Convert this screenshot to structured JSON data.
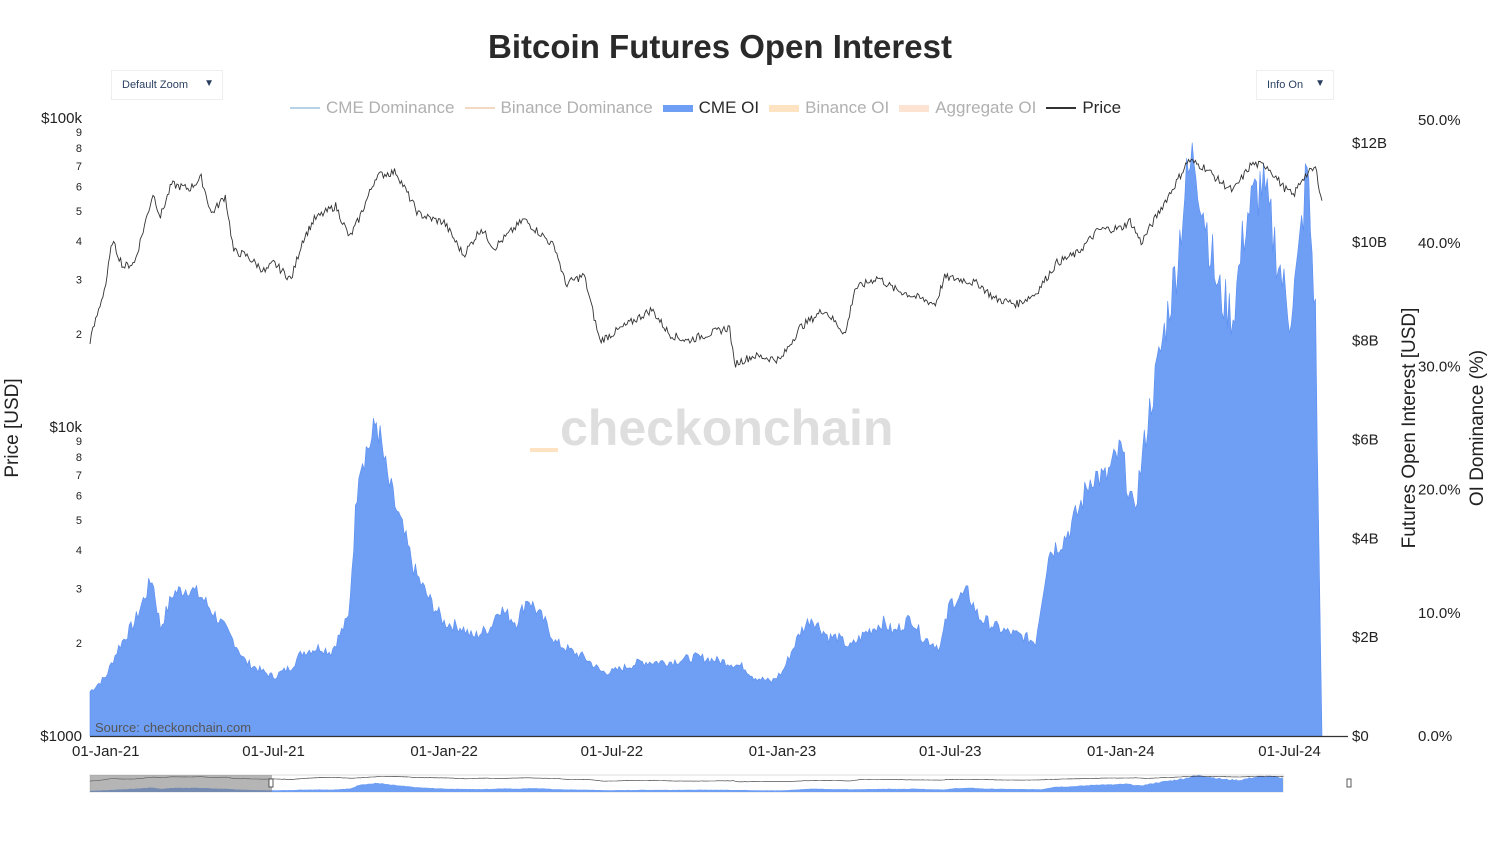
{
  "title": "Bitcoin Futures Open Interest",
  "controls": {
    "zoom_label": "Default Zoom",
    "info_label": "Info On",
    "dropdown_arrow": "▼"
  },
  "legend": [
    {
      "label": "CME Dominance",
      "color": "#b7d3ea",
      "active": false,
      "kind": "line"
    },
    {
      "label": "Binance Dominance",
      "color": "#f3d9c2",
      "active": false,
      "kind": "line"
    },
    {
      "label": "CME OI",
      "color": "#6f9ff5",
      "active": true,
      "kind": "area"
    },
    {
      "label": "Binance OI",
      "color": "#fde3c2",
      "active": false,
      "kind": "area"
    },
    {
      "label": "Aggregate OI",
      "color": "#fde3d2",
      "active": false,
      "kind": "area"
    },
    {
      "label": "Price",
      "color": "#333333",
      "active": true,
      "kind": "line"
    }
  ],
  "watermark": "checkonchain",
  "source": "Source: checkonchain.com",
  "chart_data": {
    "type": "area",
    "x_ticks": [
      "01-Jan-21",
      "01-Jul-21",
      "01-Jan-22",
      "01-Jul-22",
      "01-Jan-23",
      "01-Jul-23",
      "01-Jan-24",
      "01-Jul-24"
    ],
    "x_range": [
      "2020-12-15",
      "2024-09-01"
    ],
    "y_left": {
      "label": "Price [USD]",
      "scale": "log",
      "range": [
        1000,
        100000
      ],
      "tick_labels": [
        "$1000",
        "2",
        "3",
        "4",
        "5",
        "6",
        "7",
        "8",
        "9",
        "$10k",
        "2",
        "3",
        "4",
        "5",
        "6",
        "7",
        "8",
        "9",
        "$100k"
      ]
    },
    "y_right_oi": {
      "label": "Futures Open Interest [USD]",
      "range": [
        0,
        12000000000
      ],
      "tick_labels": [
        "$0",
        "$2B",
        "$4B",
        "$6B",
        "$8B",
        "$10B",
        "$12B"
      ]
    },
    "y_right_dominance": {
      "label": "OI Dominance (%)",
      "range": [
        0,
        50
      ],
      "tick_labels": [
        "0.0%",
        "10.0%",
        "20.0%",
        "30.0%",
        "40.0%",
        "50.0%"
      ]
    },
    "series": [
      {
        "name": "CME OI",
        "axis": "oi",
        "x": [
          "2020-12-15",
          "2021-01-01",
          "2021-01-15",
          "2021-02-01",
          "2021-02-20",
          "2021-03-01",
          "2021-03-15",
          "2021-04-01",
          "2021-04-15",
          "2021-05-01",
          "2021-05-20",
          "2021-06-01",
          "2021-06-20",
          "2021-07-01",
          "2021-07-20",
          "2021-08-01",
          "2021-08-20",
          "2021-09-01",
          "2021-09-20",
          "2021-10-01",
          "2021-10-15",
          "2021-10-20",
          "2021-11-01",
          "2021-11-15",
          "2021-12-01",
          "2021-12-15",
          "2022-01-01",
          "2022-01-20",
          "2022-02-01",
          "2022-02-20",
          "2022-03-01",
          "2022-03-20",
          "2022-04-01",
          "2022-04-20",
          "2022-05-01",
          "2022-05-20",
          "2022-06-01",
          "2022-06-20",
          "2022-07-01",
          "2022-08-01",
          "2022-09-01",
          "2022-10-01",
          "2022-11-01",
          "2022-11-20",
          "2022-12-01",
          "2022-12-20",
          "2023-01-01",
          "2023-01-20",
          "2023-02-01",
          "2023-02-20",
          "2023-03-01",
          "2023-03-15",
          "2023-04-01",
          "2023-04-20",
          "2023-05-01",
          "2023-05-20",
          "2023-06-01",
          "2023-06-20",
          "2023-07-01",
          "2023-07-20",
          "2023-08-01",
          "2023-08-20",
          "2023-09-01",
          "2023-09-20",
          "2023-10-01",
          "2023-10-15",
          "2023-11-01",
          "2023-11-15",
          "2023-12-01",
          "2023-12-15",
          "2024-01-01",
          "2024-01-15",
          "2024-02-01",
          "2024-02-15",
          "2024-03-01",
          "2024-03-10",
          "2024-03-20",
          "2024-04-01",
          "2024-04-15",
          "2024-05-01",
          "2024-05-15",
          "2024-06-01",
          "2024-06-15",
          "2024-07-01",
          "2024-07-10",
          "2024-07-20",
          "2024-07-29",
          "2024-08-02",
          "2024-08-05"
        ],
        "values": [
          0.9,
          1.2,
          1.8,
          2.3,
          3.2,
          2.2,
          2.9,
          3.0,
          2.8,
          2.4,
          1.9,
          1.5,
          1.3,
          1.2,
          1.4,
          1.7,
          1.8,
          1.7,
          2.4,
          5.5,
          6.0,
          6.4,
          5.2,
          4.3,
          3.3,
          2.8,
          2.3,
          2.2,
          2.0,
          2.2,
          2.6,
          2.3,
          2.8,
          2.3,
          1.9,
          1.7,
          1.6,
          1.3,
          1.3,
          1.5,
          1.5,
          1.6,
          1.5,
          1.4,
          1.2,
          1.1,
          1.3,
          2.1,
          2.4,
          2.0,
          2.0,
          1.8,
          2.1,
          2.3,
          2.1,
          2.4,
          2.0,
          1.8,
          2.7,
          2.9,
          2.4,
          2.2,
          2.1,
          2.0,
          1.9,
          3.7,
          4.0,
          4.5,
          5.3,
          5.2,
          5.8,
          4.5,
          6.6,
          8.0,
          9.5,
          11.0,
          11.8,
          10.5,
          9.0,
          8.5,
          10.5,
          11.2,
          10.0,
          8.5,
          9.5,
          11.5,
          8.5,
          3.5,
          0.0
        ]
      },
      {
        "name": "Price",
        "axis": "price",
        "x": [
          "2020-12-15",
          "2021-01-01",
          "2021-01-08",
          "2021-01-20",
          "2021-02-01",
          "2021-02-21",
          "2021-03-01",
          "2021-03-13",
          "2021-04-01",
          "2021-04-14",
          "2021-04-25",
          "2021-05-10",
          "2021-05-19",
          "2021-06-01",
          "2021-06-22",
          "2021-07-01",
          "2021-07-20",
          "2021-08-01",
          "2021-08-14",
          "2021-09-06",
          "2021-09-21",
          "2021-10-01",
          "2021-10-20",
          "2021-11-10",
          "2021-12-04",
          "2021-12-20",
          "2022-01-01",
          "2022-01-22",
          "2022-02-10",
          "2022-02-24",
          "2022-03-28",
          "2022-04-20",
          "2022-05-01",
          "2022-05-12",
          "2022-06-01",
          "2022-06-18",
          "2022-07-01",
          "2022-08-13",
          "2022-09-01",
          "2022-09-20",
          "2022-10-01",
          "2022-11-05",
          "2022-11-10",
          "2022-12-01",
          "2022-12-30",
          "2023-01-20",
          "2023-02-15",
          "2023-03-10",
          "2023-03-20",
          "2023-04-14",
          "2023-05-01",
          "2023-06-15",
          "2023-06-25",
          "2023-07-14",
          "2023-08-01",
          "2023-08-18",
          "2023-09-11",
          "2023-10-01",
          "2023-10-24",
          "2023-11-15",
          "2023-12-08",
          "2024-01-01",
          "2024-01-11",
          "2024-01-23",
          "2024-02-15",
          "2024-03-01",
          "2024-03-14",
          "2024-04-01",
          "2024-04-15",
          "2024-05-01",
          "2024-05-21",
          "2024-06-07",
          "2024-06-24",
          "2024-07-05",
          "2024-07-15",
          "2024-07-29",
          "2024-08-05"
        ],
        "values": [
          19000,
          29000,
          40000,
          33000,
          34000,
          57000,
          48000,
          61000,
          59000,
          64000,
          49000,
          56000,
          37000,
          36000,
          31800,
          34000,
          30000,
          40000,
          47000,
          52000,
          41000,
          47000,
          65000,
          67000,
          49000,
          47000,
          46000,
          36000,
          44000,
          38000,
          47000,
          41000,
          38000,
          29000,
          31000,
          19000,
          20000,
          24000,
          20000,
          19000,
          19500,
          21000,
          16000,
          17000,
          16500,
          21000,
          24000,
          20000,
          28000,
          30500,
          28000,
          25000,
          30500,
          30000,
          29000,
          26000,
          25000,
          27000,
          34000,
          36500,
          43500,
          44000,
          46500,
          39500,
          52000,
          62000,
          73000,
          69000,
          63000,
          58000,
          71000,
          70000,
          60000,
          56000,
          64000,
          69000,
          54000
        ]
      }
    ],
    "grid": false,
    "legend_position": "top"
  }
}
